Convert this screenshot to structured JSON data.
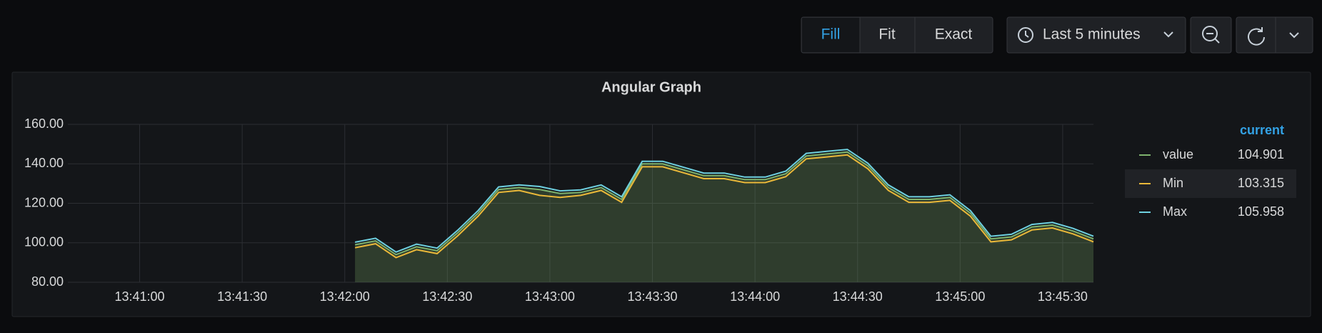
{
  "toolbar": {
    "fill": "Fill",
    "fit": "Fit",
    "exact": "Exact",
    "time_range": "Last 5 minutes"
  },
  "chart_data": {
    "type": "line",
    "title": "Angular Graph",
    "x": [
      "13:42:03",
      "13:42:09",
      "13:42:15",
      "13:42:21",
      "13:42:27",
      "13:42:33",
      "13:42:39",
      "13:42:45",
      "13:42:51",
      "13:42:57",
      "13:43:03",
      "13:43:09",
      "13:43:15",
      "13:43:21",
      "13:43:27",
      "13:43:33",
      "13:43:39",
      "13:43:45",
      "13:43:51",
      "13:43:57",
      "13:44:03",
      "13:44:09",
      "13:44:15",
      "13:44:21",
      "13:44:27",
      "13:44:33",
      "13:44:39",
      "13:44:45",
      "13:44:51",
      "13:44:57",
      "13:45:03",
      "13:45:09",
      "13:45:15",
      "13:45:21",
      "13:45:27",
      "13:45:33",
      "13:45:39"
    ],
    "series": [
      {
        "name": "value",
        "color": "#7eb26d",
        "current": "104.901",
        "values": [
          99,
          101,
          94,
          98,
          96,
          105,
          115,
          127,
          128,
          127,
          125,
          125.5,
          128,
          122,
          140,
          140,
          137,
          134,
          134,
          132,
          132,
          135,
          144,
          145,
          146,
          139,
          128,
          122,
          122,
          123,
          115,
          102,
          103,
          108,
          109,
          106,
          102
        ]
      },
      {
        "name": "Min",
        "color": "#eab839",
        "current": "103.315",
        "values": [
          97.5,
          99.5,
          92.5,
          96.5,
          94.5,
          103.5,
          113.5,
          125.5,
          126.5,
          124,
          123,
          124,
          126.5,
          120.5,
          138.5,
          138.5,
          135.5,
          132.5,
          132.5,
          130.5,
          130.5,
          133.5,
          142.5,
          143.5,
          144.5,
          137.5,
          126.5,
          120.5,
          120.5,
          121.5,
          113.5,
          100.5,
          101.5,
          106.5,
          107.5,
          104.5,
          100.5
        ]
      },
      {
        "name": "Max",
        "color": "#6ed0e0",
        "current": "105.958",
        "values": [
          100.3,
          102.3,
          95.3,
          99.3,
          97.3,
          106.3,
          116.3,
          128.3,
          129.3,
          128.5,
          126.3,
          126.8,
          129.3,
          123.3,
          141.3,
          141.3,
          138.3,
          135.3,
          135.3,
          133.3,
          133.3,
          136.3,
          145.3,
          146.3,
          147.3,
          140.3,
          129.3,
          123.3,
          123.3,
          124.3,
          116.3,
          103.3,
          104.3,
          109.3,
          110.3,
          107.3,
          103.3
        ]
      }
    ],
    "xlim": [
      "13:40:39",
      "13:45:39"
    ],
    "xticks": [
      "13:41:00",
      "13:41:30",
      "13:42:00",
      "13:42:30",
      "13:43:00",
      "13:43:30",
      "13:44:00",
      "13:44:30",
      "13:45:00",
      "13:45:30"
    ],
    "ylim": [
      80,
      160
    ],
    "yticks": [
      {
        "value": 80,
        "label": "80.00"
      },
      {
        "value": 100,
        "label": "100.00"
      },
      {
        "value": 120,
        "label": "120.00"
      },
      {
        "value": 140,
        "label": "140.00"
      },
      {
        "value": 160,
        "label": "160.00"
      }
    ],
    "grid": true,
    "legend_header": "current"
  }
}
